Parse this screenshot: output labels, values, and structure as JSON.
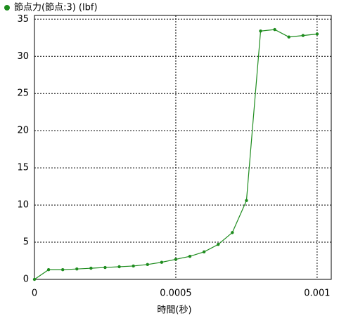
{
  "chart_data": {
    "type": "line",
    "x_label": "時間(秒)",
    "x": [
      0,
      5e-05,
      0.0001,
      0.00015,
      0.0002,
      0.00025,
      0.0003,
      0.00035,
      0.0004,
      0.00045,
      0.0005,
      0.00055,
      0.0006,
      0.00065,
      0.0007,
      0.00075,
      0.0008,
      0.00085,
      0.0009,
      0.00095,
      0.001
    ],
    "series": [
      {
        "name": "節点力(節点:3) (lbf)",
        "color": "#1e8c1e",
        "values": [
          0,
          1.3,
          1.3,
          1.4,
          1.5,
          1.6,
          1.7,
          1.8,
          2.0,
          2.3,
          2.7,
          3.1,
          3.7,
          4.7,
          6.3,
          10.6,
          33.4,
          33.6,
          32.6,
          32.8,
          33.0
        ]
      }
    ],
    "xlim": [
      0,
      0.00105
    ],
    "xticks": [
      0,
      0.0005,
      0.001
    ],
    "ylim": [
      0,
      35.5
    ],
    "yticks": [
      0,
      5,
      10,
      15,
      20,
      25,
      30,
      35
    ],
    "grid": true,
    "legend": "top-left"
  }
}
